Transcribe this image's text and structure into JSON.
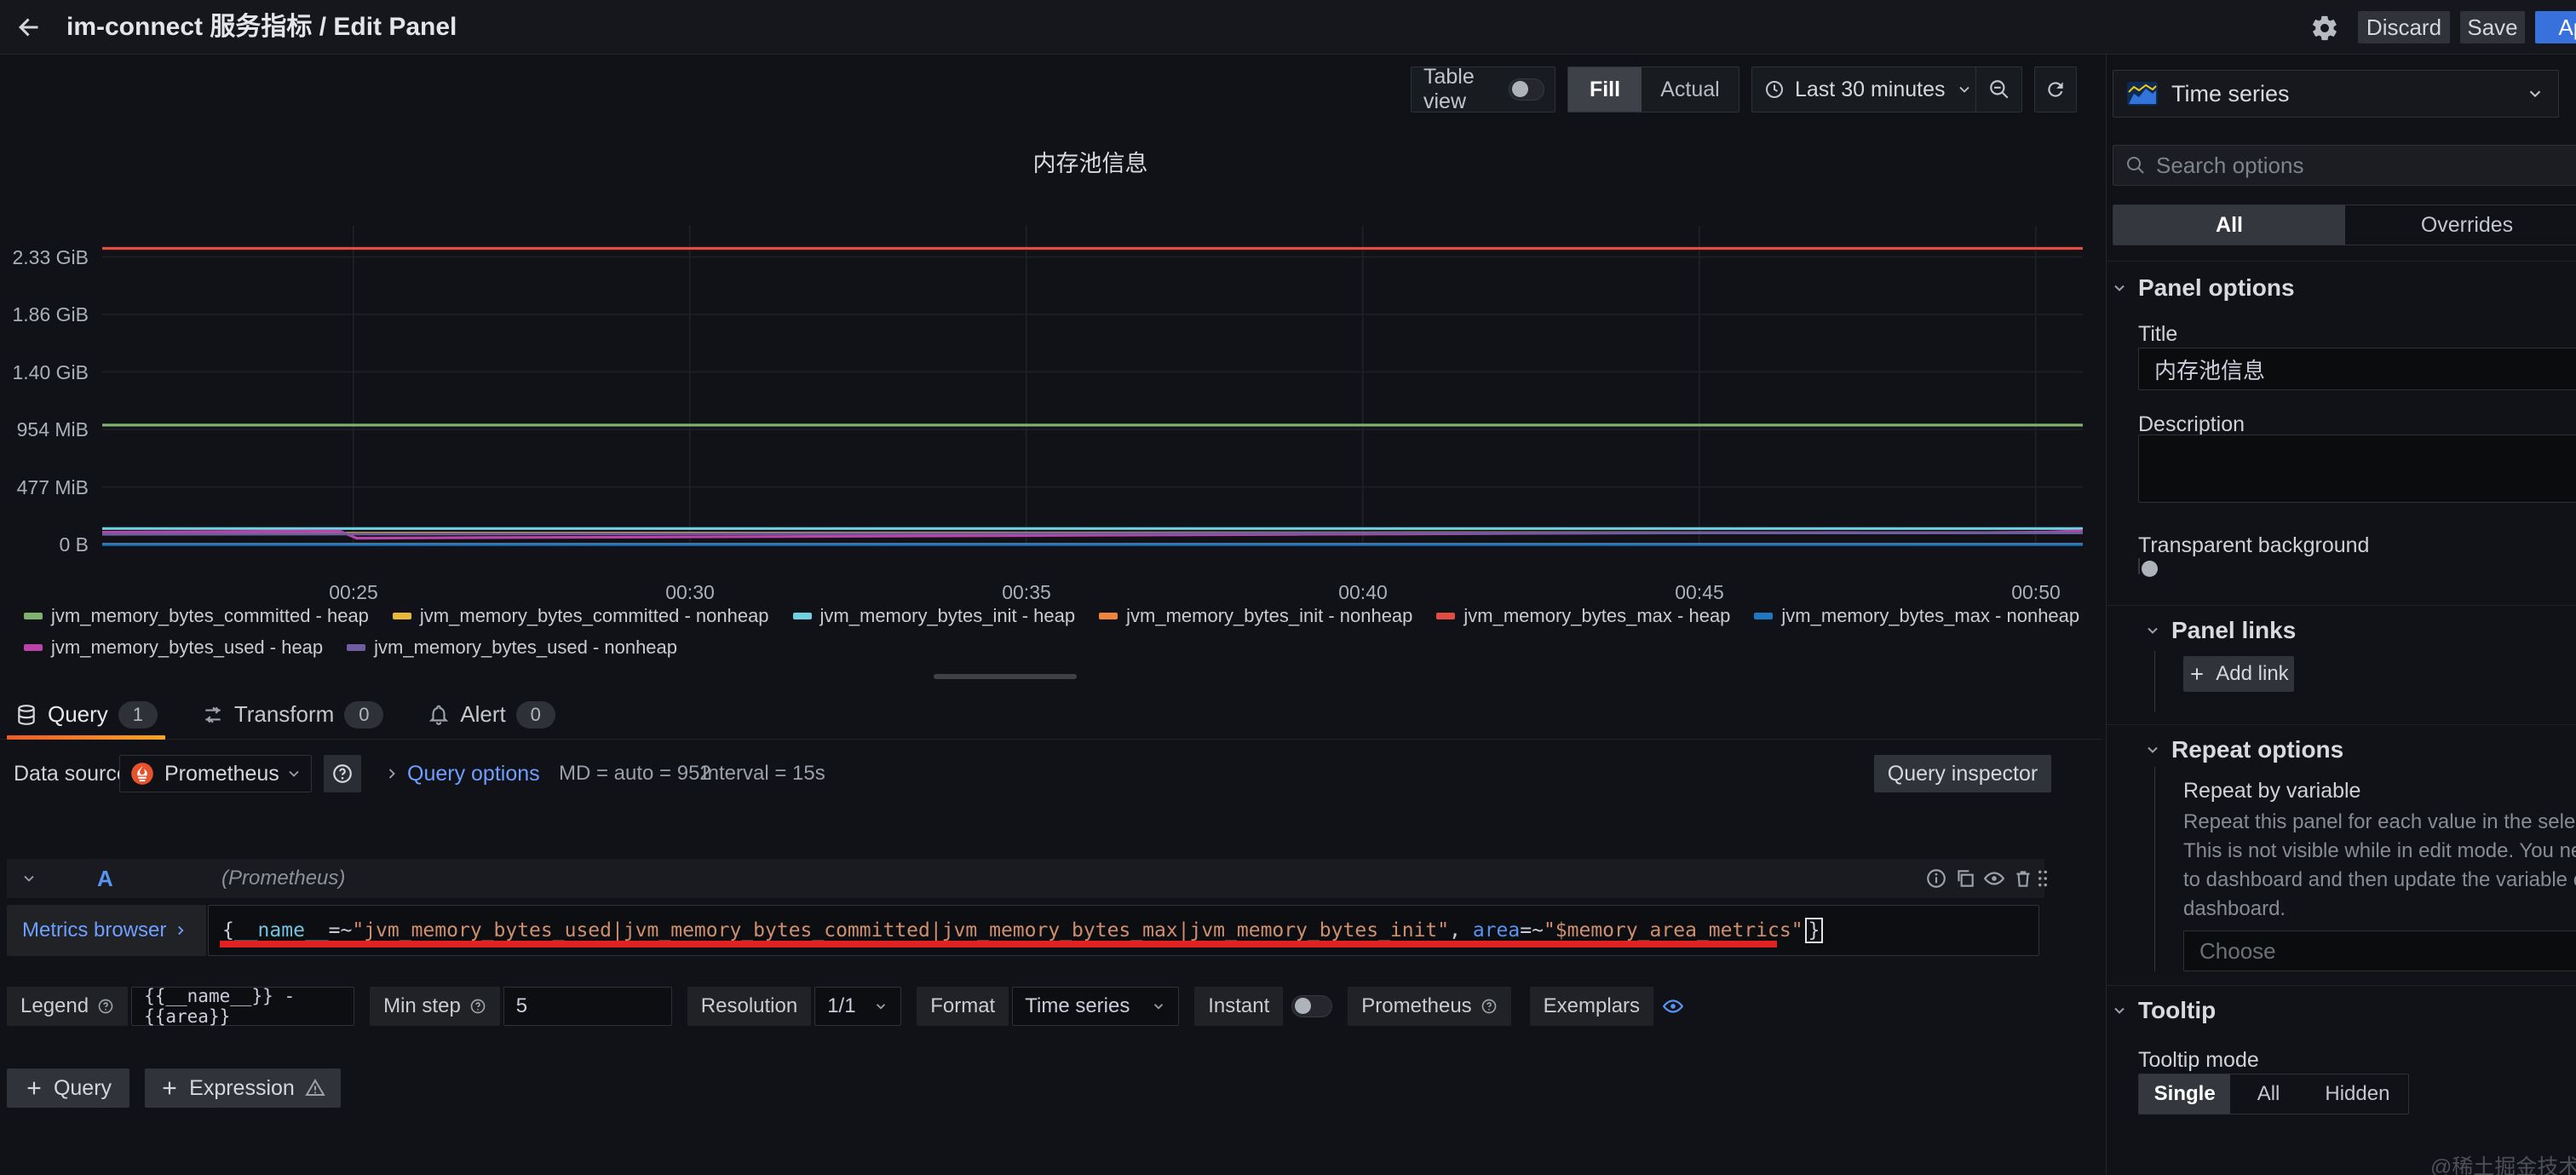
{
  "topbar": {
    "title": "im-connect 服务指标 / Edit Panel",
    "discard": "Discard",
    "save": "Save",
    "apply": "Apply"
  },
  "toolbar": {
    "table_view": "Table view",
    "fill": "Fill",
    "actual": "Actual",
    "time_range": "Last 30 minutes"
  },
  "chart_data": {
    "type": "line",
    "title": "内存池信息",
    "unit": "MiB",
    "grid": true,
    "legend_position": "bottom",
    "x_range_minutes": [
      21.27,
      50.7
    ],
    "x_ticks": [
      {
        "label": "00:25",
        "t": 25
      },
      {
        "label": "00:30",
        "t": 30
      },
      {
        "label": "00:35",
        "t": 35
      },
      {
        "label": "00:40",
        "t": 40
      },
      {
        "label": "00:45",
        "t": 45
      },
      {
        "label": "00:50",
        "t": 50
      }
    ],
    "y_ticks": [
      {
        "label": "0 B",
        "v": 0
      },
      {
        "label": "477 MiB",
        "v": 477
      },
      {
        "label": "954 MiB",
        "v": 954
      },
      {
        "label": "1.40 GiB",
        "v": 1431
      },
      {
        "label": "1.86 GiB",
        "v": 1908
      },
      {
        "label": "2.33 GiB",
        "v": 2385
      }
    ],
    "series": [
      {
        "name": "jvm_memory_bytes_committed - heap",
        "color": "#7EB26D",
        "points": [
          [
            21.27,
            990
          ],
          [
            50.7,
            990
          ]
        ]
      },
      {
        "name": "jvm_memory_bytes_committed - nonheap",
        "color": "#EAB839",
        "points": [
          [
            21.27,
            92
          ],
          [
            30,
            95
          ],
          [
            40,
            97
          ],
          [
            50.7,
            99
          ]
        ]
      },
      {
        "name": "jvm_memory_bytes_init - heap",
        "color": "#6ED0E0",
        "points": [
          [
            21.27,
            132
          ],
          [
            50.7,
            132
          ]
        ]
      },
      {
        "name": "jvm_memory_bytes_init - nonheap",
        "color": "#EF843C",
        "points": [
          [
            21.27,
            2.4
          ],
          [
            50.7,
            2.4
          ]
        ]
      },
      {
        "name": "jvm_memory_bytes_max - heap",
        "color": "#E24D42",
        "points": [
          [
            21.27,
            2456
          ],
          [
            50.7,
            2456
          ]
        ]
      },
      {
        "name": "jvm_memory_bytes_max - nonheap",
        "color": "#1F78C1",
        "points": [
          [
            21.27,
            0
          ],
          [
            50.7,
            0
          ]
        ]
      },
      {
        "name": "jvm_memory_bytes_used - heap",
        "color": "#BA43A9",
        "points": [
          [
            21.27,
            102
          ],
          [
            24.8,
            112
          ],
          [
            25.05,
            52
          ],
          [
            27,
            57
          ],
          [
            29,
            61
          ],
          [
            31,
            65
          ],
          [
            33,
            69
          ],
          [
            35,
            74
          ],
          [
            37,
            79
          ],
          [
            39,
            84
          ],
          [
            41,
            88
          ],
          [
            43,
            93
          ],
          [
            45,
            97
          ],
          [
            47,
            99
          ],
          [
            48.5,
            96
          ],
          [
            49.5,
            99
          ],
          [
            50.2,
            103
          ],
          [
            50.7,
            113
          ]
        ]
      },
      {
        "name": "jvm_memory_bytes_used - nonheap",
        "color": "#705DA0",
        "points": [
          [
            21.27,
            85
          ],
          [
            25,
            87
          ],
          [
            30,
            90
          ],
          [
            35,
            92
          ],
          [
            40,
            94
          ],
          [
            45,
            96
          ],
          [
            50.7,
            97
          ]
        ]
      }
    ]
  },
  "tabs": {
    "query": {
      "label": "Query",
      "badge": "1"
    },
    "transform": {
      "label": "Transform",
      "badge": "0"
    },
    "alert": {
      "label": "Alert",
      "badge": "0"
    }
  },
  "datasource_row": {
    "label": "Data source",
    "datasource": "Prometheus",
    "query_options": "Query options",
    "max_data_points": "MD = auto = 952",
    "interval": "Interval = 15s",
    "query_inspector": "Query inspector"
  },
  "query_row": {
    "ref_id": "A",
    "hint": "(Prometheus)",
    "metrics_browser": "Metrics browser",
    "tokens": {
      "t0": "{",
      "t1": "__name__",
      "t2": "=~",
      "t3": "\"jvm_memory_bytes_used|jvm_memory_bytes_committed|jvm_memory_bytes_max|jvm_memory_bytes_init\"",
      "t4": ", ",
      "t5": "area",
      "t6": "=~",
      "t7": "\"$memory_area_metrics\"",
      "t8": "}"
    }
  },
  "options_row": {
    "legend": "Legend",
    "legend_value": "{{__name__}} - {{area}}",
    "min_step": "Min step",
    "min_step_value": "5",
    "resolution": "Resolution",
    "resolution_value": "1/1",
    "format": "Format",
    "format_value": "Time series",
    "instant": "Instant",
    "datasource_type": "Prometheus",
    "exemplars": "Exemplars"
  },
  "footer": {
    "add_query": "Query",
    "add_expression": "Expression"
  },
  "sidebar": {
    "visualization": "Time series",
    "search_placeholder": "Search options",
    "tab_all": "All",
    "tab_overrides": "Overrides",
    "panel_options": {
      "header": "Panel options",
      "title_label": "Title",
      "title_value": "内存池信息",
      "description_label": "Description",
      "description_value": "",
      "transparent_label": "Transparent background"
    },
    "panel_links": {
      "header": "Panel links",
      "add_link": "Add link"
    },
    "repeat_options": {
      "header": "Repeat options",
      "label": "Repeat by variable",
      "line1": "Repeat this panel for each value in the selected variable.",
      "line2": "This is not visible while in edit mode. You need to go back",
      "line3": "to dashboard and then update the variable or reload the",
      "line4": "dashboard.",
      "choose": "Choose"
    },
    "tooltip": {
      "header": "Tooltip",
      "mode_label": "Tooltip mode",
      "single": "Single",
      "all": "All",
      "hidden": "Hidden"
    }
  },
  "watermark": "@稀土掘金技术社区"
}
